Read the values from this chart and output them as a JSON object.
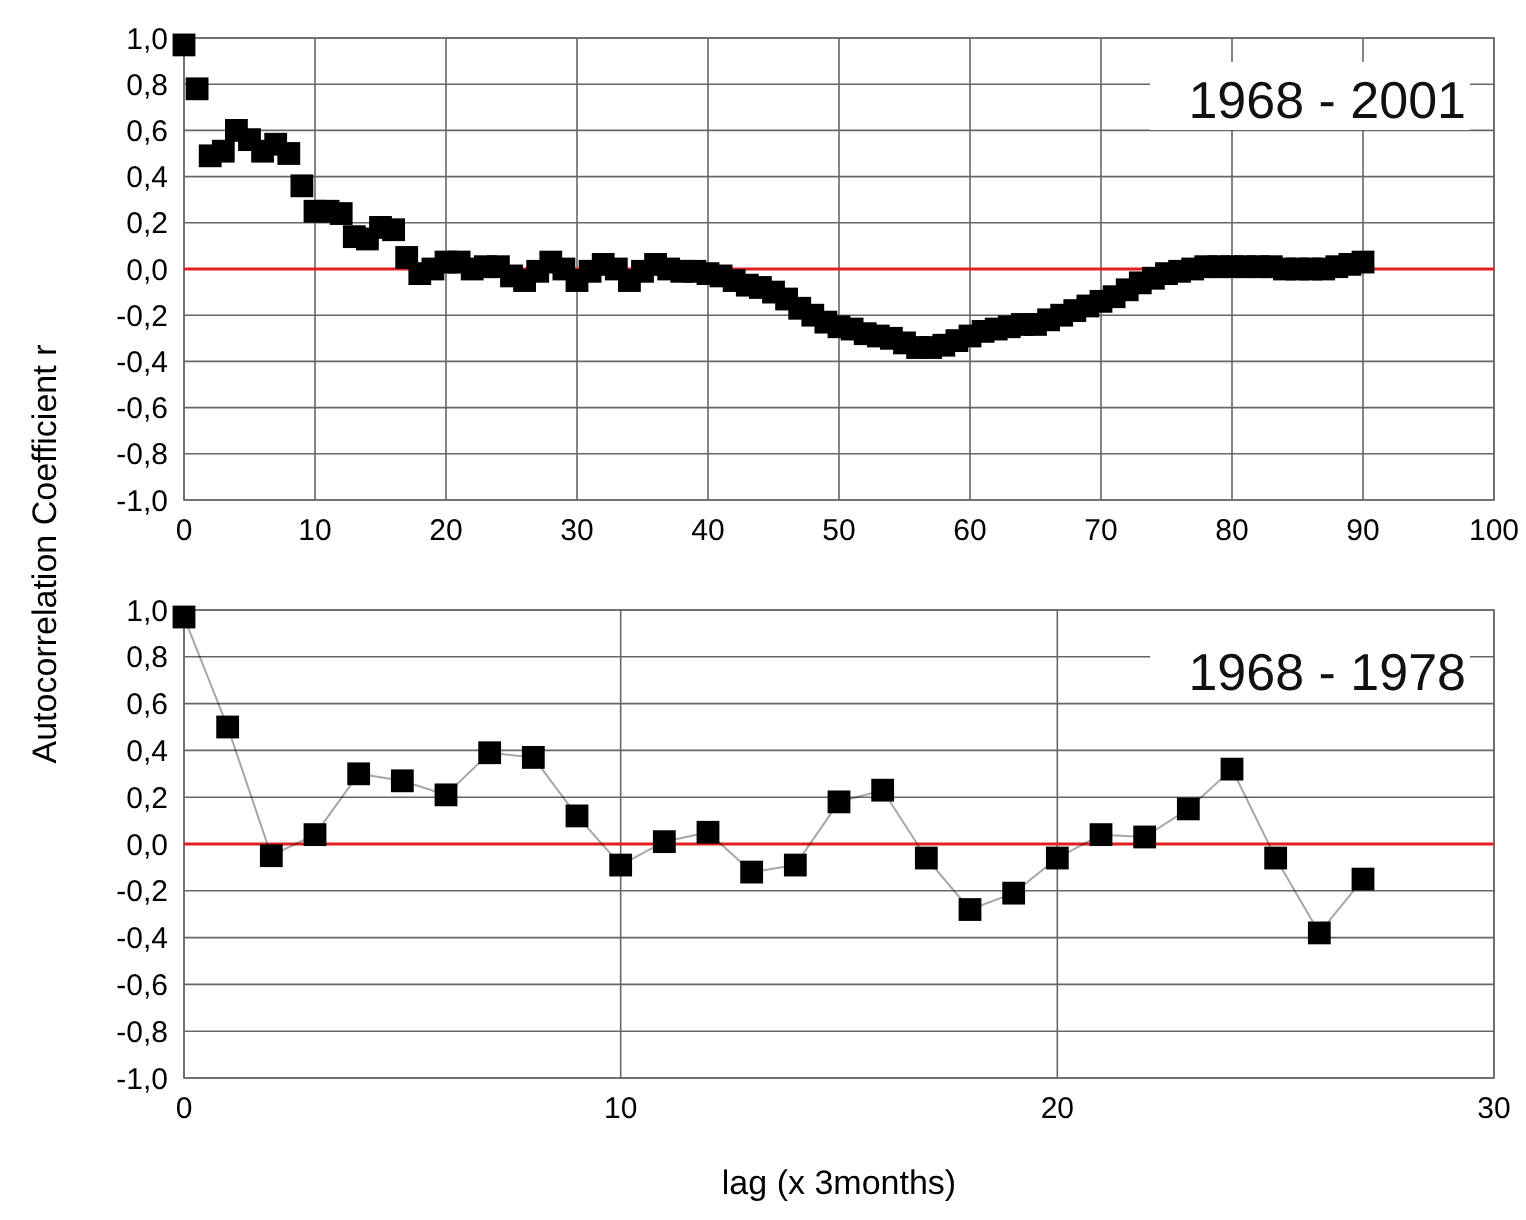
{
  "chart_data": [
    {
      "type": "scatter",
      "marker": "square",
      "grid": true,
      "annotations": [
        "1968 - 2001"
      ],
      "xlim": [
        0,
        100
      ],
      "xticks": [
        0,
        10,
        20,
        30,
        40,
        50,
        60,
        70,
        80,
        90,
        100
      ],
      "ylim": [
        -1,
        1
      ],
      "yticks": [
        {
          "value": -1,
          "label": "-1,0"
        },
        {
          "value": -0.8,
          "label": "-0,8"
        },
        {
          "value": -0.6,
          "label": "-0,6"
        },
        {
          "value": -0.4,
          "label": "-0,4"
        },
        {
          "value": -0.2,
          "label": "-0,2"
        },
        {
          "value": 0,
          "label": "0,0"
        },
        {
          "value": 0.2,
          "label": "0,2"
        },
        {
          "value": 0.4,
          "label": "0,4"
        },
        {
          "value": 0.6,
          "label": "0,6"
        },
        {
          "value": 0.8,
          "label": "0,8"
        },
        {
          "value": 1,
          "label": "1,0"
        }
      ],
      "ref_lines": [
        {
          "axis": "y",
          "value": 0,
          "color": "#e02020"
        }
      ],
      "x": [
        0,
        1,
        2,
        3,
        4,
        5,
        6,
        7,
        8,
        9,
        10,
        11,
        12,
        13,
        14,
        15,
        16,
        17,
        18,
        19,
        20,
        21,
        22,
        23,
        24,
        25,
        26,
        27,
        28,
        29,
        30,
        31,
        32,
        33,
        34,
        35,
        36,
        37,
        38,
        39,
        40,
        41,
        42,
        43,
        44,
        45,
        46,
        47,
        48,
        49,
        50,
        51,
        52,
        53,
        54,
        55,
        56,
        57,
        58,
        59,
        60,
        61,
        62,
        63,
        64,
        65,
        66,
        67,
        68,
        69,
        70,
        71,
        72,
        73,
        74,
        75,
        76,
        77,
        78,
        79,
        80,
        81,
        82,
        83,
        84,
        85,
        86,
        87,
        88,
        89,
        90
      ],
      "series": [
        {
          "color": "#000000",
          "values": [
            0.97,
            0.78,
            0.49,
            0.51,
            0.6,
            0.56,
            0.51,
            0.54,
            0.5,
            0.36,
            0.25,
            0.25,
            0.24,
            0.14,
            0.13,
            0.18,
            0.17,
            0.05,
            -0.02,
            0.0,
            0.03,
            0.03,
            0.0,
            0.01,
            0.01,
            -0.03,
            -0.05,
            -0.01,
            0.03,
            0.0,
            -0.05,
            -0.01,
            0.02,
            0.0,
            -0.05,
            -0.01,
            0.02,
            0.0,
            -0.01,
            -0.01,
            -0.02,
            -0.03,
            -0.05,
            -0.07,
            -0.08,
            -0.1,
            -0.13,
            -0.17,
            -0.2,
            -0.23,
            -0.25,
            -0.26,
            -0.28,
            -0.29,
            -0.3,
            -0.32,
            -0.34,
            -0.34,
            -0.33,
            -0.31,
            -0.29,
            -0.27,
            -0.26,
            -0.25,
            -0.24,
            -0.24,
            -0.22,
            -0.2,
            -0.18,
            -0.16,
            -0.14,
            -0.12,
            -0.09,
            -0.06,
            -0.04,
            -0.02,
            -0.01,
            0.0,
            0.01,
            0.01,
            0.01,
            0.01,
            0.01,
            0.01,
            0.0,
            0.0,
            0.0,
            0.0,
            0.01,
            0.02,
            0.03
          ]
        }
      ]
    },
    {
      "type": "line",
      "marker": "square",
      "line_style": "solid",
      "grid": true,
      "annotations": [
        "1968 - 1978"
      ],
      "xlabel": "lag (x 3months)",
      "ylabel": "Autocorrelation Coefficient r",
      "xlim": [
        0,
        30
      ],
      "xticks": [
        0,
        10,
        20,
        30
      ],
      "ylim": [
        -1,
        1
      ],
      "yticks": [
        {
          "value": -1,
          "label": "-1,0"
        },
        {
          "value": -0.8,
          "label": "-0,8"
        },
        {
          "value": -0.6,
          "label": "-0,6"
        },
        {
          "value": -0.4,
          "label": "-0,4"
        },
        {
          "value": -0.2,
          "label": "-0,2"
        },
        {
          "value": 0,
          "label": "0,0"
        },
        {
          "value": 0.2,
          "label": "0,2"
        },
        {
          "value": 0.4,
          "label": "0,4"
        },
        {
          "value": 0.6,
          "label": "0,6"
        },
        {
          "value": 0.8,
          "label": "0,8"
        },
        {
          "value": 1,
          "label": "1,0"
        }
      ],
      "ref_lines": [
        {
          "axis": "y",
          "value": 0,
          "color": "#e02020"
        }
      ],
      "x": [
        0,
        1,
        2,
        3,
        4,
        5,
        6,
        7,
        8,
        9,
        10,
        11,
        12,
        13,
        14,
        15,
        16,
        17,
        18,
        19,
        20,
        21,
        22,
        23,
        24,
        25,
        26,
        27
      ],
      "series": [
        {
          "color": "#000000",
          "values": [
            0.97,
            0.5,
            -0.05,
            0.04,
            0.3,
            0.27,
            0.21,
            0.39,
            0.37,
            0.12,
            -0.09,
            0.01,
            0.05,
            -0.12,
            -0.09,
            0.18,
            0.23,
            -0.06,
            -0.28,
            -0.21,
            -0.06,
            0.04,
            0.03,
            0.15,
            0.32,
            -0.06,
            -0.38,
            -0.15
          ]
        }
      ]
    }
  ]
}
